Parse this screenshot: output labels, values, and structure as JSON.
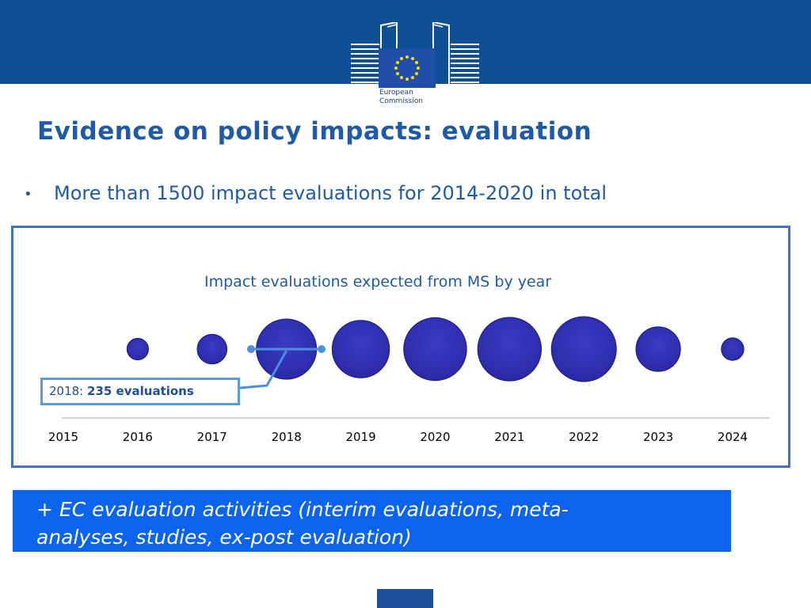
{
  "header": {
    "logo_text_line1": "European",
    "logo_text_line2": "Commission"
  },
  "slide": {
    "title": "Evidence on policy impacts: evaluation",
    "bullet": "More than 1500 impact evaluations for 2014-2020 in total",
    "bullet_symbol": "•"
  },
  "chart_data": {
    "type": "bubble",
    "title": "Impact evaluations expected from MS by year",
    "categories": [
      "2015",
      "2016",
      "2017",
      "2018",
      "2019",
      "2020",
      "2021",
      "2022",
      "2023",
      "2024"
    ],
    "bubble_relative_size": [
      0,
      0.11,
      0.21,
      0.86,
      0.78,
      0.94,
      0.96,
      1.0,
      0.47,
      0.12
    ],
    "bubble_color": "#2a2aa8",
    "callout": {
      "category": "2018",
      "year_label": "2018:",
      "value_label": "235 evaluations",
      "value": 235
    }
  },
  "ec_box": {
    "line1": "+ EC evaluation activities (interim evaluations, meta-",
    "line2": "analyses, studies, ex-post evaluation)"
  },
  "colors": {
    "header_band": "#0e4f96",
    "title": "#1f5aa8",
    "frame": "#4472c4",
    "callout_border": "#5b9bd5",
    "ec_box": "#0b63ee"
  }
}
